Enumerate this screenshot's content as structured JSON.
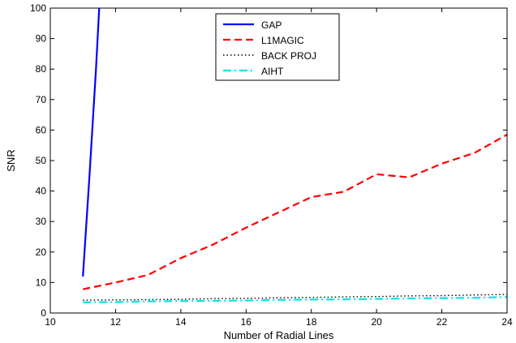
{
  "chart_data": {
    "type": "line",
    "xlabel": "Number of Radial Lines",
    "ylabel": "SNR",
    "xlim": [
      10,
      24
    ],
    "ylim": [
      0,
      100
    ],
    "xticks": [
      10,
      12,
      14,
      16,
      18,
      20,
      22,
      24
    ],
    "yticks": [
      0,
      10,
      20,
      30,
      40,
      50,
      60,
      70,
      80,
      90,
      100
    ],
    "grid": false,
    "legend_position": "top-center",
    "series": [
      {
        "name": "GAP",
        "color": "#0000ff",
        "style": "solid",
        "x": [
          11,
          11.2,
          11.4,
          11.5,
          11.55
        ],
        "y": [
          12,
          45,
          80,
          100,
          110
        ]
      },
      {
        "name": "L1MAGIC",
        "color": "#ff0000",
        "style": "dashed",
        "x": [
          11,
          12,
          13,
          14,
          15,
          16,
          17,
          18,
          19,
          20,
          21,
          22,
          23,
          24
        ],
        "y": [
          7.8,
          10,
          12.5,
          18,
          22.5,
          28,
          33,
          38,
          39.8,
          45.5,
          44.5,
          49,
          52.5,
          58.5
        ]
      },
      {
        "name": "BACK PROJ",
        "color": "#000000",
        "style": "dotted",
        "x": [
          11,
          12,
          13,
          14,
          15,
          16,
          17,
          18,
          19,
          20,
          21,
          22,
          23,
          24
        ],
        "y": [
          4.2,
          4.3,
          4.4,
          4.5,
          4.7,
          4.8,
          5.0,
          5.1,
          5.3,
          5.4,
          5.6,
          5.7,
          5.9,
          6.1
        ]
      },
      {
        "name": "AIHT",
        "color": "#00e5e5",
        "style": "dashdot",
        "x": [
          11,
          12,
          13,
          14,
          15,
          16,
          17,
          18,
          19,
          20,
          21,
          22,
          23,
          24
        ],
        "y": [
          3.5,
          3.6,
          3.8,
          3.9,
          4.0,
          4.1,
          4.3,
          4.4,
          4.5,
          4.6,
          4.8,
          4.9,
          5.0,
          5.2
        ]
      }
    ]
  }
}
